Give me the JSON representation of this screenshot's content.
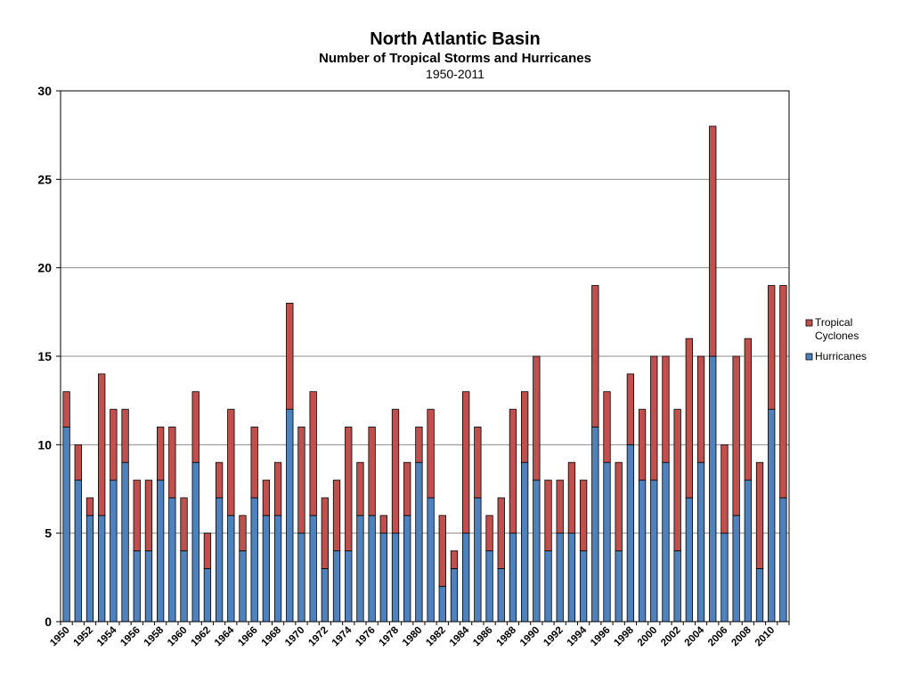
{
  "chart_data": {
    "type": "bar",
    "stacked": true,
    "title": "North Atlantic Basin",
    "subtitle": "Number of Tropical Storms and Hurricanes",
    "period": "1950-2011",
    "ylim": [
      0,
      30
    ],
    "yticks": [
      0,
      5,
      10,
      15,
      20,
      25,
      30
    ],
    "grid": true,
    "legend_position": "right",
    "categories": [
      "1950",
      "1951",
      "1952",
      "1953",
      "1954",
      "1955",
      "1956",
      "1957",
      "1958",
      "1959",
      "1960",
      "1961",
      "1962",
      "1963",
      "1964",
      "1965",
      "1966",
      "1967",
      "1968",
      "1969",
      "1970",
      "1971",
      "1972",
      "1973",
      "1974",
      "1975",
      "1976",
      "1977",
      "1978",
      "1979",
      "1980",
      "1981",
      "1982",
      "1983",
      "1984",
      "1985",
      "1986",
      "1987",
      "1988",
      "1989",
      "1990",
      "1991",
      "1992",
      "1993",
      "1994",
      "1995",
      "1996",
      "1997",
      "1998",
      "1999",
      "2000",
      "2001",
      "2002",
      "2003",
      "2004",
      "2005",
      "2006",
      "2007",
      "2008",
      "2009",
      "2010",
      "2011"
    ],
    "series": [
      {
        "name": "Hurricanes",
        "color": "#4f81bd",
        "values": [
          11,
          8,
          6,
          6,
          8,
          9,
          4,
          4,
          8,
          7,
          4,
          9,
          3,
          7,
          6,
          4,
          7,
          6,
          6,
          12,
          5,
          6,
          3,
          4,
          4,
          6,
          6,
          5,
          5,
          6,
          9,
          7,
          2,
          3,
          5,
          7,
          4,
          3,
          5,
          9,
          8,
          4,
          5,
          5,
          4,
          11,
          9,
          4,
          10,
          8,
          8,
          9,
          4,
          7,
          9,
          15,
          5,
          6,
          8,
          3,
          12,
          7
        ]
      },
      {
        "name": "Tropical Cyclones",
        "label_lines": [
          "Tropical",
          "Cyclones"
        ],
        "color": "#c0504d",
        "values": [
          2,
          2,
          1,
          8,
          4,
          3,
          4,
          4,
          3,
          4,
          3,
          4,
          2,
          2,
          6,
          2,
          4,
          2,
          3,
          6,
          6,
          7,
          4,
          4,
          7,
          3,
          5,
          1,
          7,
          3,
          2,
          5,
          4,
          1,
          8,
          4,
          2,
          4,
          7,
          4,
          7,
          4,
          3,
          4,
          4,
          8,
          4,
          5,
          4,
          4,
          7,
          6,
          8,
          9,
          6,
          13,
          5,
          9,
          8,
          6,
          7,
          12
        ]
      }
    ],
    "xtick_labels": [
      "1950",
      "1952",
      "1954",
      "1956",
      "1958",
      "1960",
      "1962",
      "1964",
      "1966",
      "1968",
      "1970",
      "1972",
      "1974",
      "1976",
      "1978",
      "1980",
      "1982",
      "1984",
      "1986",
      "1988",
      "1990",
      "1992",
      "1994",
      "1996",
      "1998",
      "2000",
      "2002",
      "2004",
      "2006",
      "2008",
      "2010"
    ]
  }
}
